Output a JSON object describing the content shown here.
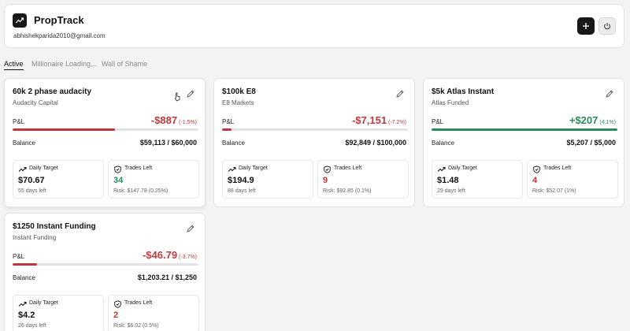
{
  "app": {
    "title": "PropTrack",
    "email": "abhishekparida2010@gmail.com"
  },
  "tabs": [
    {
      "label": "Active",
      "active": true
    },
    {
      "label": "Millionaire Loading...",
      "active": false
    },
    {
      "label": "Wall of Shame",
      "active": false
    }
  ],
  "labels": {
    "pnl": "P&L",
    "balance": "Balance",
    "daily_target": "Daily Target",
    "trades_left": "Trades Left"
  },
  "colors": {
    "negative": "#c0383d",
    "positive": "#2c8a5e",
    "dark": "#18181b"
  },
  "cards": [
    {
      "name": "60k 2 phase audacity",
      "firm": "Audacity Capital",
      "pnl": "-$887",
      "pnl_pct": "(-1.5%)",
      "sign": "negative",
      "progress": 0.55,
      "balance": "$59,113 / $60,000",
      "daily_target": "$70.67",
      "days_left": "55 days left",
      "trades_left": "34",
      "trades_positive": true,
      "risk": "Risk: $147.78 (0.25%)"
    },
    {
      "name": "$100k E8",
      "firm": "E8 Markets",
      "pnl": "-$7,151",
      "pnl_pct": "(-7.2%)",
      "sign": "negative",
      "progress": 0.05,
      "balance": "$92,849 / $100,000",
      "daily_target": "$194.9",
      "days_left": "88 days left",
      "trades_left": "9",
      "trades_positive": false,
      "risk": "Risk: $92.85 (0.1%)"
    },
    {
      "name": "$5k Atlas Instant",
      "firm": "Atlas Funded",
      "pnl": "+$207",
      "pnl_pct": "(4.1%)",
      "sign": "positive",
      "progress": 1.0,
      "balance": "$5,207 / $5,000",
      "daily_target": "$1.48",
      "days_left": "29 days left",
      "trades_left": "4",
      "trades_positive": false,
      "risk": "Risk: $52.07 (1%)"
    },
    {
      "name": "$1250 Instant Funding",
      "firm": "Instant Funding",
      "pnl": "-$46.79",
      "pnl_pct": "(-3.7%)",
      "sign": "negative",
      "progress": 0.13,
      "balance": "$1,203.21 / $1,250",
      "daily_target": "$4.2",
      "days_left": "26 days left",
      "trades_left": "2",
      "trades_positive": false,
      "risk": "Risk: $6.02 (0.5%)"
    }
  ]
}
